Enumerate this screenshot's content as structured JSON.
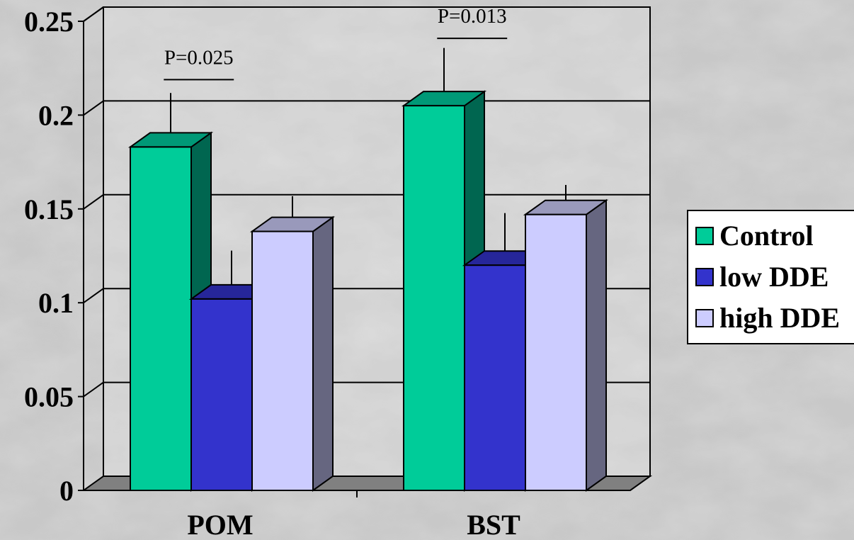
{
  "chart_data": {
    "type": "bar",
    "categories": [
      "POM",
      "BST"
    ],
    "series": [
      {
        "name": "Control",
        "values": [
          0.183,
          0.205
        ],
        "errors": [
          0.025,
          0.027
        ],
        "color": "#00cc99",
        "top": "#009977",
        "side": "#006650"
      },
      {
        "name": "low DDE",
        "values": [
          0.102,
          0.12
        ],
        "errors": [
          0.022,
          0.024
        ],
        "color": "#3333cc",
        "top": "#26269a",
        "side": "#1c1c7a"
      },
      {
        "name": "high DDE",
        "values": [
          0.138,
          0.147
        ],
        "errors": [
          0.015,
          0.012
        ],
        "color": "#ccccff",
        "top": "#9999bb",
        "side": "#666680"
      }
    ],
    "yticks": [
      "0",
      "0.05",
      "0.1",
      "0.15",
      "0.2",
      "0.25"
    ],
    "ylim": [
      0,
      0.25
    ],
    "annotations": [
      {
        "text": "P=0.025",
        "category": "POM"
      },
      {
        "text": "P=0.013",
        "category": "BST"
      }
    ],
    "grid": true,
    "legend": "right",
    "title": "",
    "xlabel": "",
    "ylabel": ""
  }
}
